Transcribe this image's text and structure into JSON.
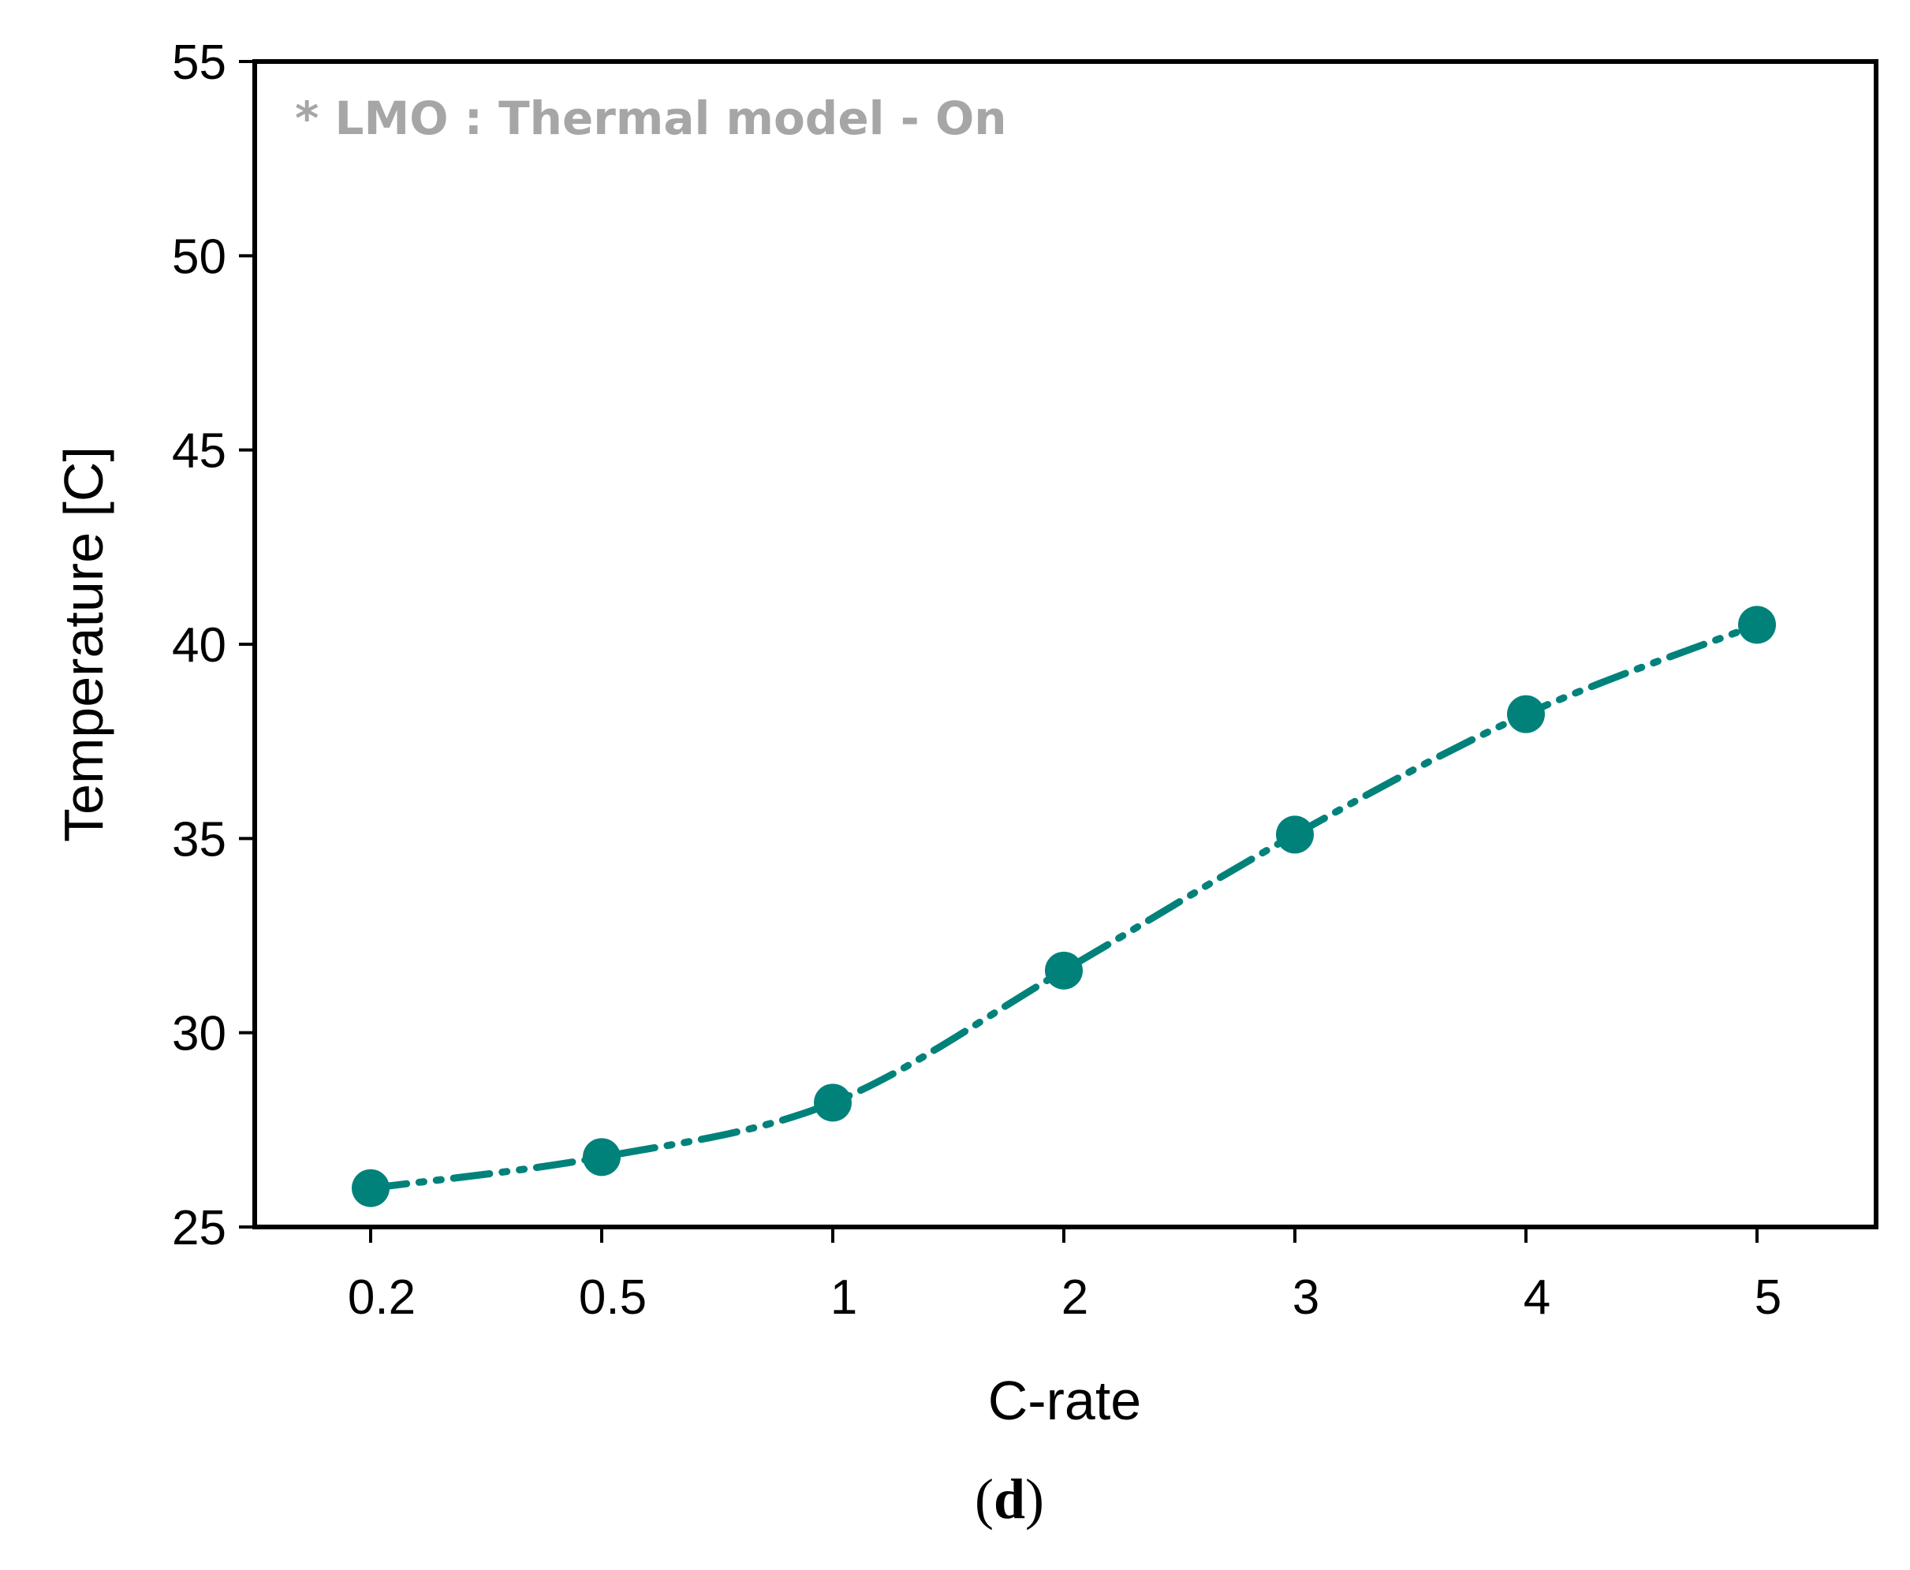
{
  "chart_data": {
    "type": "line",
    "categories": [
      "0.2",
      "0.5",
      "1",
      "2",
      "3",
      "4",
      "5"
    ],
    "series": [
      {
        "name": "LMO",
        "values": [
          26.0,
          26.8,
          28.2,
          31.6,
          35.1,
          38.2,
          40.5
        ]
      }
    ],
    "title": "",
    "xlabel": "C-rate",
    "ylabel": "Temperature [C]",
    "ylim": [
      25,
      55
    ],
    "yticks": [
      "25",
      "30",
      "35",
      "40",
      "45",
      "50",
      "55"
    ],
    "annotation": "* LMO : Thermal model - On",
    "grid": false,
    "legend": "none"
  },
  "caption": {
    "open": "(",
    "letter": "d",
    "close": ")"
  },
  "colors": {
    "series": "#00827a",
    "axis": "#000000",
    "annotation": "#a6a6a6"
  }
}
